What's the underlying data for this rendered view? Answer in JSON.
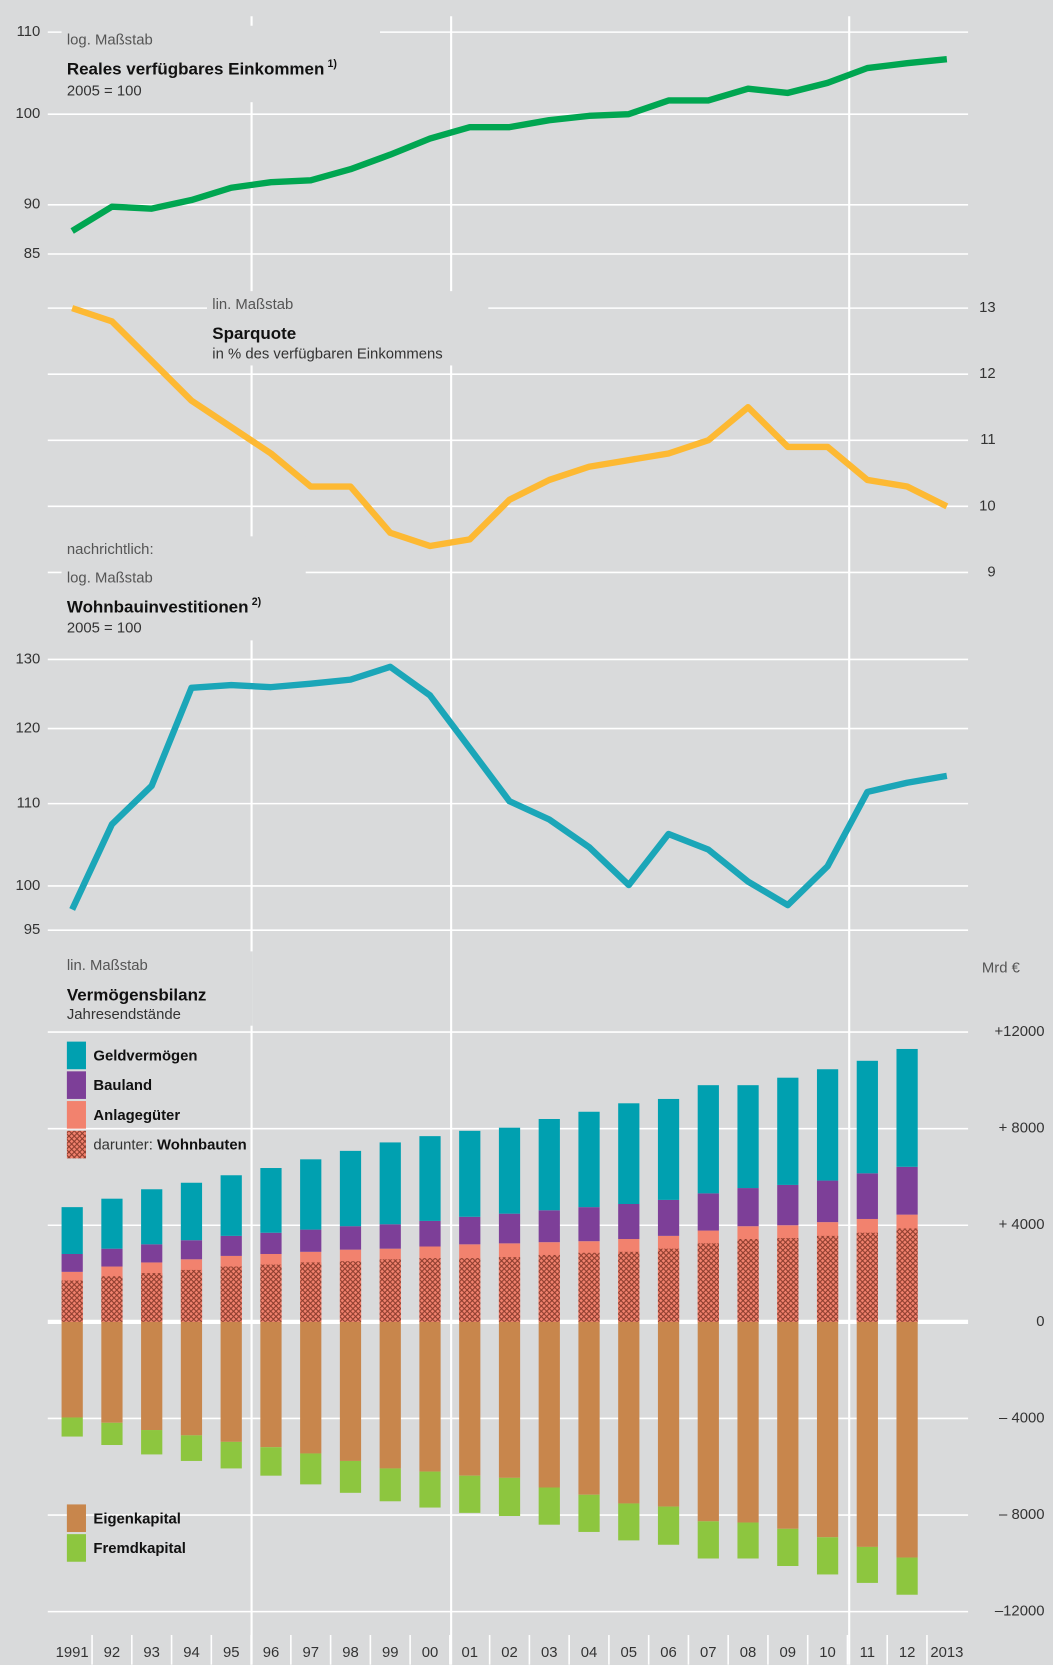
{
  "chart_data": [
    {
      "type": "line",
      "log": true,
      "ytick_side": "left",
      "color": "#00a651",
      "scale_note": "log. Maßstab",
      "title": "Reales verfügbares Einkommen",
      "title_note": "1)",
      "subtitle": "2005 = 100",
      "categories": [
        "1991",
        "92",
        "93",
        "94",
        "95",
        "96",
        "97",
        "98",
        "99",
        "00",
        "01",
        "02",
        "03",
        "04",
        "05",
        "06",
        "07",
        "08",
        "09",
        "10",
        "11",
        "12",
        "2013"
      ],
      "values": [
        87.3,
        89.8,
        89.6,
        90.5,
        91.8,
        92.4,
        92.6,
        93.8,
        95.4,
        97.2,
        98.5,
        98.5,
        99.3,
        99.8,
        100,
        101.6,
        101.6,
        103.0,
        102.5,
        103.7,
        105.5,
        106.1,
        106.6
      ],
      "ylim": [
        85,
        110
      ],
      "yticks": [
        85,
        90,
        100,
        110
      ]
    },
    {
      "type": "line",
      "log": false,
      "ytick_side": "right",
      "color": "#fdb933",
      "scale_note": "lin. Maßstab",
      "title": "Sparquote",
      "subtitle": "in % des verfügbaren Einkommens",
      "values": [
        13.0,
        12.8,
        12.2,
        11.6,
        11.2,
        10.8,
        10.3,
        10.3,
        9.6,
        9.4,
        9.5,
        10.1,
        10.4,
        10.6,
        10.7,
        10.8,
        11.0,
        11.5,
        10.9,
        10.9,
        10.4,
        10.3,
        10.0
      ],
      "ylim": [
        9,
        13
      ],
      "yticks": [
        9,
        10,
        11,
        12,
        13
      ]
    },
    {
      "type": "line",
      "log": true,
      "ytick_side": "left",
      "color": "#1ba6b8",
      "prefix": "nachrichtlich:",
      "scale_note": "log. Maßstab",
      "title": "Wohnbauinvestitionen",
      "title_note": "2)",
      "subtitle": "2005 = 100",
      "values": [
        97.3,
        107.4,
        112.3,
        125.8,
        126.2,
        125.9,
        126.4,
        127.0,
        128.9,
        124.7,
        117.3,
        110.3,
        108.0,
        104.6,
        100.1,
        106.2,
        104.3,
        100.5,
        97.8,
        102.3,
        111.5,
        112.7,
        113.6
      ],
      "ylim": [
        95,
        130
      ],
      "yticks": [
        95,
        100,
        110,
        120,
        130
      ]
    },
    {
      "type": "stacked_bar",
      "ytick_side": "right",
      "scale_note": "lin. Maßstab",
      "title": "Vermögensbilanz",
      "subtitle": "Jahresendstände",
      "unit": "Mrd €",
      "ylim": [
        -12000,
        12000
      ],
      "yticks": [
        {
          "value": -12000,
          "label": "–12000"
        },
        {
          "value": -8000,
          "label": "– 8000"
        },
        {
          "value": -4000,
          "label": "– 4000"
        },
        0,
        {
          "value": 4000,
          "label": "+ 4000"
        },
        {
          "value": 8000,
          "label": "+ 8000"
        },
        {
          "value": 12000,
          "label": "+12000"
        }
      ],
      "series": [
        {
          "name": "Geldvermögen",
          "color": "#00a0b0",
          "stack": "pos",
          "values": [
            1940,
            2070,
            2280,
            2380,
            2510,
            2680,
            2910,
            3120,
            3390,
            3510,
            3560,
            3560,
            3780,
            3950,
            4170,
            4180,
            4480,
            4260,
            4440,
            4610,
            4660,
            4880
          ]
        },
        {
          "name": "Bauland",
          "color": "#7d3f98",
          "stack": "pos",
          "values": [
            740,
            740,
            750,
            790,
            830,
            880,
            920,
            970,
            1010,
            1060,
            1140,
            1230,
            1320,
            1410,
            1450,
            1490,
            1540,
            1580,
            1670,
            1720,
            1890,
            1980
          ]
        },
        {
          "name": "Anlagegüter",
          "color": "#f2826e",
          "stack": "pos",
          "values": [
            2070,
            2290,
            2460,
            2590,
            2730,
            2810,
            2900,
            2990,
            3030,
            3120,
            3210,
            3250,
            3300,
            3340,
            3430,
            3560,
            3780,
            3960,
            4000,
            4130,
            4260,
            4440
          ]
        },
        {
          "name": "Wohnbauten",
          "note": "darunter:",
          "color": "#8a3b2c",
          "stack": "subset",
          "values": [
            1710,
            1890,
            2020,
            2150,
            2290,
            2370,
            2460,
            2510,
            2590,
            2640,
            2640,
            2680,
            2770,
            2860,
            2900,
            3030,
            3250,
            3430,
            3470,
            3560,
            3690,
            3870
          ]
        },
        {
          "name": "Eigenkapital",
          "color": "#c8864c",
          "stack": "neg",
          "values": [
            -3960,
            -4180,
            -4480,
            -4700,
            -4970,
            -5190,
            -5450,
            -5760,
            -6070,
            -6200,
            -6370,
            -6460,
            -6860,
            -7160,
            -7520,
            -7650,
            -8260,
            -8310,
            -8570,
            -8920,
            -9320,
            -9760
          ]
        },
        {
          "name": "Fremdkapital",
          "color": "#8dc63f",
          "stack": "neg",
          "values": [
            -790,
            -920,
            -1010,
            -1060,
            -1100,
            -1180,
            -1280,
            -1320,
            -1360,
            -1490,
            -1540,
            -1580,
            -1540,
            -1540,
            -1530,
            -1580,
            -1540,
            -1490,
            -1540,
            -1540,
            -1490,
            -1540
          ]
        }
      ]
    }
  ]
}
